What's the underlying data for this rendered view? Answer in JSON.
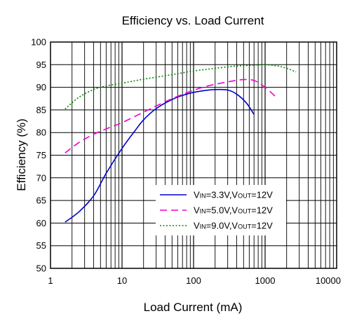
{
  "chart_data": {
    "type": "line",
    "title": "Efficiency vs. Load Current",
    "xlabel": "Load Current (mA)",
    "ylabel": "Efficiency (%)",
    "xscale": "log",
    "xlim": [
      1,
      10000
    ],
    "ylim": [
      50,
      100
    ],
    "xticks": [
      1,
      10,
      100,
      1000,
      10000
    ],
    "xtick_labels": [
      "1",
      "10",
      "100",
      "1000",
      "10000"
    ],
    "yticks": [
      50,
      55,
      60,
      65,
      70,
      75,
      80,
      85,
      90,
      95,
      100
    ],
    "ytick_labels": [
      "50",
      "55",
      "60",
      "65",
      "70",
      "75",
      "80",
      "85",
      "90",
      "95",
      "100"
    ],
    "grid": true,
    "legend_position": "bottom-right",
    "series": [
      {
        "name_parts": [
          "V",
          "IN",
          "=3.3V,V",
          "OUT",
          "=12V"
        ],
        "color": "#0000cc",
        "dash": "solid",
        "x": [
          1.6,
          2.5,
          4,
          6,
          10,
          15,
          20,
          30,
          50,
          80,
          130,
          200,
          300,
          400,
          550,
          700
        ],
        "y": [
          60.2,
          62.5,
          66,
          71,
          76.5,
          80.3,
          82.8,
          85.3,
          87.3,
          88.5,
          89.2,
          89.5,
          89.4,
          88.5,
          86.5,
          84
        ]
      },
      {
        "name_parts": [
          "V",
          "IN",
          "=5.0V,V",
          "OUT",
          "=12V"
        ],
        "color": "#ee00cc",
        "dash": "dashed",
        "x": [
          1.6,
          2.5,
          4,
          6,
          10,
          20,
          40,
          80,
          150,
          300,
          500,
          700,
          1000,
          1500
        ],
        "y": [
          75.5,
          77.8,
          79.6,
          80.8,
          82.2,
          84.5,
          86.8,
          88.8,
          90.2,
          91.2,
          91.7,
          91.5,
          90,
          87.5
        ]
      },
      {
        "name_parts": [
          "V",
          "IN",
          "=9.0V,V",
          "OUT",
          "=12V"
        ],
        "color": "#008800",
        "dash": "dotted",
        "x": [
          1.6,
          2.5,
          4,
          6,
          10,
          20,
          50,
          100,
          200,
          400,
          700,
          1000,
          1500,
          2000,
          2700
        ],
        "y": [
          85.2,
          87.8,
          89.5,
          90.3,
          90.9,
          91.8,
          92.8,
          93.6,
          94.2,
          94.7,
          94.9,
          95,
          94.7,
          94.2,
          93.4
        ]
      }
    ]
  }
}
